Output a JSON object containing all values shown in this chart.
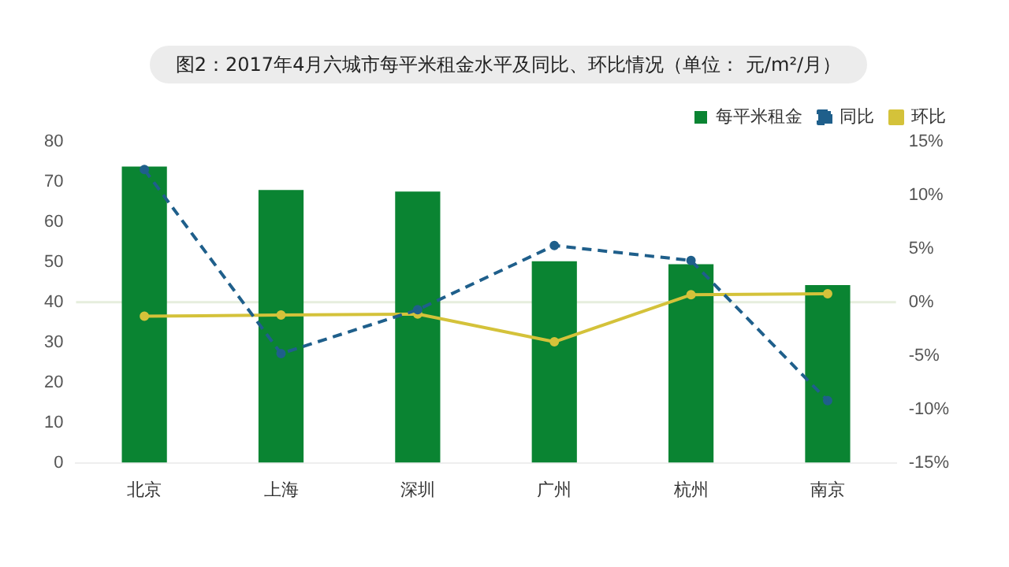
{
  "chart_data": {
    "type": "bar",
    "title": "图2：2017年4月六城市每平米租金水平及同比、环比情况（单位： 元/m²/月）",
    "categories": [
      "北京",
      "上海",
      "深圳",
      "广州",
      "杭州",
      "南京"
    ],
    "series": [
      {
        "name": "每平米租金",
        "color": "#0a8432",
        "values": [
          73.8,
          68.0,
          67.6,
          50.2,
          49.5,
          44.3
        ]
      },
      {
        "name": "同比",
        "type": "line",
        "axis": "y2",
        "color": "#1f5f8b",
        "line_style": "dashed",
        "values": [
          12.4,
          -4.8,
          -0.7,
          5.3,
          3.9,
          -9.2
        ]
      },
      {
        "name": "环比",
        "type": "line",
        "axis": "y2",
        "color": "#d4c23a",
        "line_style": "solid",
        "values": [
          -1.3,
          -1.2,
          -1.1,
          -3.7,
          0.7,
          0.8
        ]
      }
    ],
    "ylim": [
      0,
      80
    ],
    "yticks": [
      0,
      10,
      20,
      30,
      40,
      50,
      60,
      70,
      80
    ],
    "y2lim": [
      -15,
      15
    ],
    "y2ticks": [
      {
        "value": -15,
        "label": "-15%"
      },
      {
        "value": -10,
        "label": "-10%"
      },
      {
        "value": -5,
        "label": "-5%"
      },
      {
        "value": 0,
        "label": "0%"
      },
      {
        "value": 5,
        "label": "5%"
      },
      {
        "value": 10,
        "label": "10%"
      },
      {
        "value": 15,
        "label": "15%"
      }
    ],
    "ref_lines": [
      {
        "axis": "y2",
        "value": 0,
        "color": "#e6eedd"
      }
    ],
    "marker": "circle",
    "legend": "top right",
    "grid": false
  }
}
